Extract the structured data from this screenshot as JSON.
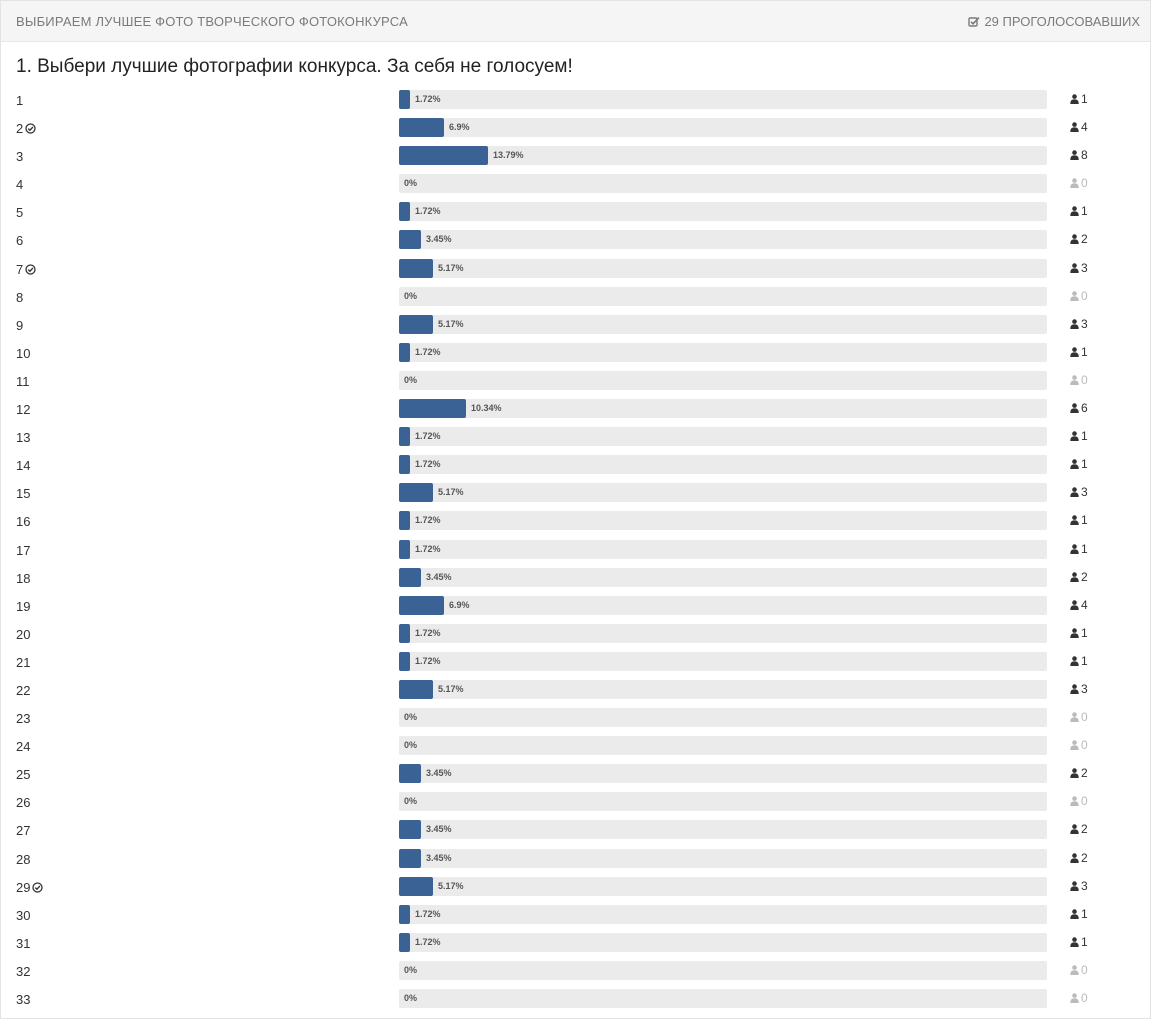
{
  "header": {
    "title": "ВЫБИРАЕМ ЛУЧШЕЕ ФОТО ТВОРЧЕСКОГО ФОТОКОНКУРСА",
    "voters": "29 ПРОГОЛОСОВАВШИХ",
    "voters_icon": "checkbox-checked-icon"
  },
  "question": "1. Выбери лучшие фотографии конкурса. За себя не голосуем!",
  "colors": {
    "bar_fill": "#3a6294",
    "bar_track": "#ebebeb",
    "zero_votes": "#bbbbbb"
  },
  "options": [
    {
      "label": "1",
      "percent": "1.72%",
      "value": 1.72,
      "votes": "1",
      "checked": false
    },
    {
      "label": "2",
      "percent": "6.9%",
      "value": 6.9,
      "votes": "4",
      "checked": true
    },
    {
      "label": "3",
      "percent": "13.79%",
      "value": 13.79,
      "votes": "8",
      "checked": false
    },
    {
      "label": "4",
      "percent": "0%",
      "value": 0,
      "votes": "0",
      "checked": false
    },
    {
      "label": "5",
      "percent": "1.72%",
      "value": 1.72,
      "votes": "1",
      "checked": false
    },
    {
      "label": "6",
      "percent": "3.45%",
      "value": 3.45,
      "votes": "2",
      "checked": false
    },
    {
      "label": "7",
      "percent": "5.17%",
      "value": 5.17,
      "votes": "3",
      "checked": true
    },
    {
      "label": "8",
      "percent": "0%",
      "value": 0,
      "votes": "0",
      "checked": false
    },
    {
      "label": "9",
      "percent": "5.17%",
      "value": 5.17,
      "votes": "3",
      "checked": false
    },
    {
      "label": "10",
      "percent": "1.72%",
      "value": 1.72,
      "votes": "1",
      "checked": false
    },
    {
      "label": "11",
      "percent": "0%",
      "value": 0,
      "votes": "0",
      "checked": false
    },
    {
      "label": "12",
      "percent": "10.34%",
      "value": 10.34,
      "votes": "6",
      "checked": false
    },
    {
      "label": "13",
      "percent": "1.72%",
      "value": 1.72,
      "votes": "1",
      "checked": false
    },
    {
      "label": "14",
      "percent": "1.72%",
      "value": 1.72,
      "votes": "1",
      "checked": false
    },
    {
      "label": "15",
      "percent": "5.17%",
      "value": 5.17,
      "votes": "3",
      "checked": false
    },
    {
      "label": "16",
      "percent": "1.72%",
      "value": 1.72,
      "votes": "1",
      "checked": false
    },
    {
      "label": "17",
      "percent": "1.72%",
      "value": 1.72,
      "votes": "1",
      "checked": false
    },
    {
      "label": "18",
      "percent": "3.45%",
      "value": 3.45,
      "votes": "2",
      "checked": false
    },
    {
      "label": "19",
      "percent": "6.9%",
      "value": 6.9,
      "votes": "4",
      "checked": false
    },
    {
      "label": "20",
      "percent": "1.72%",
      "value": 1.72,
      "votes": "1",
      "checked": false
    },
    {
      "label": "21",
      "percent": "1.72%",
      "value": 1.72,
      "votes": "1",
      "checked": false
    },
    {
      "label": "22",
      "percent": "5.17%",
      "value": 5.17,
      "votes": "3",
      "checked": false
    },
    {
      "label": "23",
      "percent": "0%",
      "value": 0,
      "votes": "0",
      "checked": false
    },
    {
      "label": "24",
      "percent": "0%",
      "value": 0,
      "votes": "0",
      "checked": false
    },
    {
      "label": "25",
      "percent": "3.45%",
      "value": 3.45,
      "votes": "2",
      "checked": false
    },
    {
      "label": "26",
      "percent": "0%",
      "value": 0,
      "votes": "0",
      "checked": false
    },
    {
      "label": "27",
      "percent": "3.45%",
      "value": 3.45,
      "votes": "2",
      "checked": false
    },
    {
      "label": "28",
      "percent": "3.45%",
      "value": 3.45,
      "votes": "2",
      "checked": false
    },
    {
      "label": "29",
      "percent": "5.17%",
      "value": 5.17,
      "votes": "3",
      "checked": true
    },
    {
      "label": "30",
      "percent": "1.72%",
      "value": 1.72,
      "votes": "1",
      "checked": false
    },
    {
      "label": "31",
      "percent": "1.72%",
      "value": 1.72,
      "votes": "1",
      "checked": false
    },
    {
      "label": "32",
      "percent": "0%",
      "value": 0,
      "votes": "0",
      "checked": false
    },
    {
      "label": "33",
      "percent": "0%",
      "value": 0,
      "votes": "0",
      "checked": false
    }
  ]
}
